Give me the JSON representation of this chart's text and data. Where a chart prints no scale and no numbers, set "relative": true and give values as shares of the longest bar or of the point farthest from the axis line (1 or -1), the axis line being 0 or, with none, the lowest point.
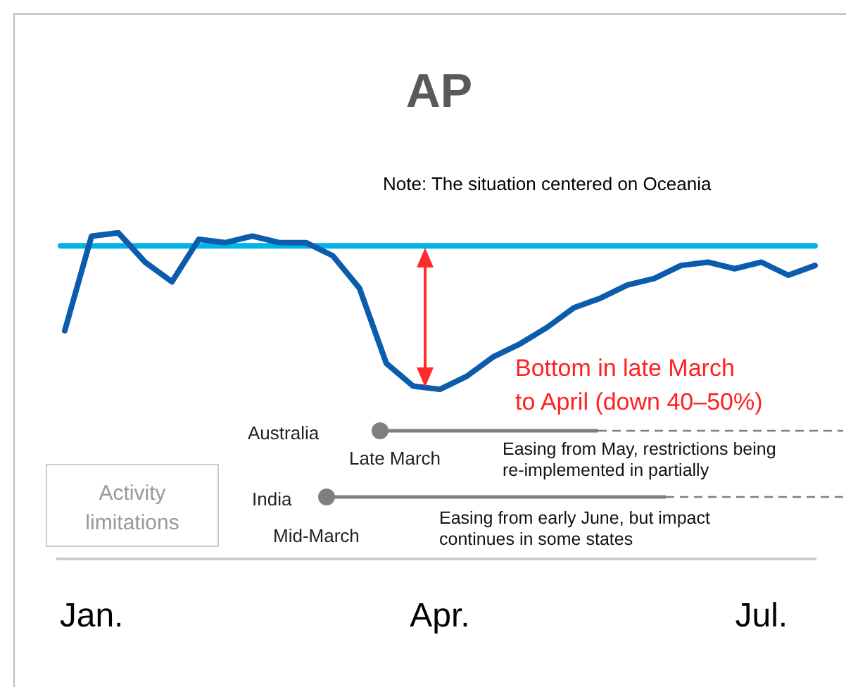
{
  "chart_data": {
    "type": "line",
    "title": "AP",
    "relative": true,
    "line_style": "solid",
    "categories": [
      null,
      "Jan.",
      null,
      null,
      null,
      null,
      null,
      null,
      null,
      null,
      null,
      null,
      null,
      null,
      "Apr.",
      null,
      null,
      null,
      null,
      null,
      null,
      null,
      null,
      null,
      null,
      null,
      "Jul.",
      null,
      null
    ],
    "series": [
      {
        "color": "#0b5cad",
        "values": [
          0.7,
          0.99,
          1,
          0.91,
          0.85,
          0.98,
          0.97,
          0.99,
          0.97,
          0.97,
          0.93,
          0.83,
          0.6,
          0.53,
          0.52,
          0.56,
          0.62,
          0.66,
          0.71,
          0.77,
          0.8,
          0.84,
          0.86,
          0.9,
          0.91,
          0.89,
          0.91,
          0.87,
          0.9
        ]
      }
    ],
    "ref_lines": [
      {
        "axis": "y",
        "value": 0.96,
        "color": "#00b4e6"
      }
    ],
    "annotations": [
      "Note: The situation centered on Oceania",
      "Bottom in late March to April (down 40–50%)",
      "Activity limitations",
      "Australia",
      "Late March",
      "Easing from May, restrictions being re-implemented in partially",
      "India",
      "Mid-March",
      "Easing from early June, but impact continues in some states"
    ]
  }
}
